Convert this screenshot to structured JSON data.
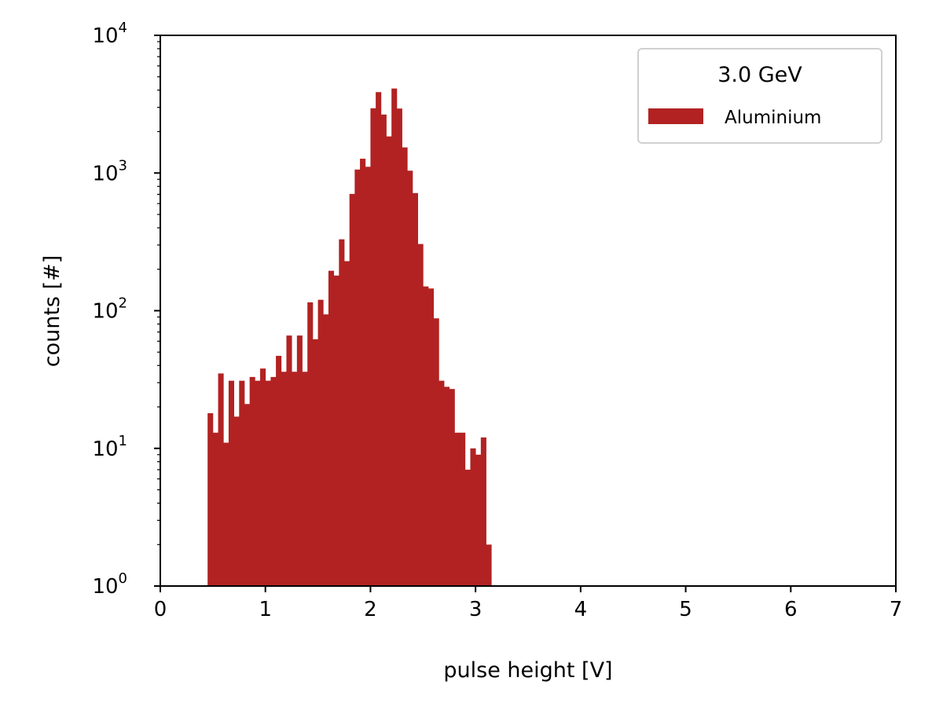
{
  "chart_data": {
    "type": "bar",
    "title": "",
    "xlabel": "pulse height [V]",
    "ylabel": "counts [#]",
    "xlim": [
      0,
      7
    ],
    "ylim": [
      1,
      10000
    ],
    "yscale": "log",
    "grid": false,
    "x_ticks": [
      "0",
      "1",
      "2",
      "3",
      "4",
      "5",
      "6",
      "7"
    ],
    "y_ticks": [
      {
        "base": "10",
        "exp": "0"
      },
      {
        "base": "10",
        "exp": "1"
      },
      {
        "base": "10",
        "exp": "2"
      },
      {
        "base": "10",
        "exp": "3"
      },
      {
        "base": "10",
        "exp": "4"
      }
    ],
    "legend": {
      "title": "3.0 GeV",
      "position": "top-right",
      "entries": [
        {
          "label": "Aluminium",
          "color": "#b22222"
        }
      ]
    },
    "bin_width": 0.05,
    "series": [
      {
        "name": "Aluminium",
        "color": "#b22222",
        "bins": [
          [
            0.45,
            18
          ],
          [
            0.5,
            13
          ],
          [
            0.55,
            35
          ],
          [
            0.6,
            11
          ],
          [
            0.65,
            31
          ],
          [
            0.7,
            17
          ],
          [
            0.75,
            31
          ],
          [
            0.8,
            21
          ],
          [
            0.85,
            33
          ],
          [
            0.9,
            31
          ],
          [
            0.95,
            38
          ],
          [
            1.0,
            31
          ],
          [
            1.05,
            33
          ],
          [
            1.1,
            47
          ],
          [
            1.15,
            36
          ],
          [
            1.2,
            66
          ],
          [
            1.25,
            36
          ],
          [
            1.3,
            66
          ],
          [
            1.35,
            36
          ],
          [
            1.4,
            115
          ],
          [
            1.45,
            62
          ],
          [
            1.5,
            120
          ],
          [
            1.55,
            94
          ],
          [
            1.6,
            195
          ],
          [
            1.65,
            180
          ],
          [
            1.7,
            330
          ],
          [
            1.75,
            229
          ],
          [
            1.8,
            705
          ],
          [
            1.85,
            1060
          ],
          [
            1.9,
            1270
          ],
          [
            1.95,
            1110
          ],
          [
            2.0,
            2955
          ],
          [
            2.05,
            3870
          ],
          [
            2.1,
            2660
          ],
          [
            2.15,
            1845
          ],
          [
            2.2,
            4110
          ],
          [
            2.25,
            2940
          ],
          [
            2.3,
            1535
          ],
          [
            2.35,
            1040
          ],
          [
            2.4,
            715
          ],
          [
            2.45,
            305
          ],
          [
            2.5,
            150
          ],
          [
            2.55,
            145
          ],
          [
            2.6,
            88
          ],
          [
            2.65,
            31
          ],
          [
            2.7,
            28
          ],
          [
            2.75,
            27
          ],
          [
            2.8,
            13
          ],
          [
            2.85,
            13
          ],
          [
            2.9,
            7
          ],
          [
            2.95,
            10
          ],
          [
            3.0,
            9
          ],
          [
            3.05,
            12
          ],
          [
            3.1,
            2
          ]
        ]
      }
    ]
  }
}
